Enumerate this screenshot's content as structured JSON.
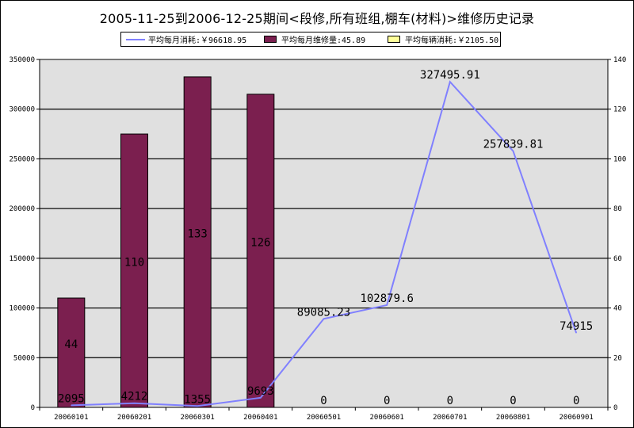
{
  "title": "2005-11-25到2006-12-25期间<段修,所有班组,棚车(材料)>维修历史记录",
  "legend": [
    {
      "label": "平均每月消耗:￥96618.95",
      "color": "#8080ff",
      "symbol": "line"
    },
    {
      "label": "平均每月维修量:45.89",
      "color": "#7b1f4f",
      "symbol": "box"
    },
    {
      "label": "平均每辆消耗:￥2105.50",
      "color": "#ffff99",
      "symbol": "box"
    }
  ],
  "chart_data": {
    "type": "bar",
    "categories": [
      "20060101",
      "20060201",
      "20060301",
      "20060401",
      "20060501",
      "20060601",
      "20060701",
      "20060801",
      "20060901"
    ],
    "series": [
      {
        "name": "平均每月消耗:￥96618.95",
        "type": "line",
        "axis": "left",
        "color": "#8080ff",
        "values": [
          2095,
          4212,
          1355,
          9693,
          89085.23,
          102879.6,
          327495.91,
          257839.81,
          74915
        ],
        "labels": [
          "2095",
          "4212",
          "1355",
          "9693",
          "89085.23",
          "102879.6",
          "327495.91",
          "257839.81",
          "74915"
        ]
      },
      {
        "name": "平均每月维修量:45.89",
        "type": "bar",
        "axis": "right",
        "color": "#7b1f4f",
        "values": [
          44,
          110,
          133,
          126,
          0,
          0,
          0,
          0,
          0
        ],
        "labels": [
          "44",
          "110",
          "133",
          "126",
          "0",
          "0",
          "0",
          "0",
          "0"
        ]
      }
    ],
    "y_left": {
      "min": 0,
      "max": 350000,
      "ticks": [
        0,
        50000,
        100000,
        150000,
        200000,
        250000,
        300000,
        350000
      ]
    },
    "y_right": {
      "min": 0,
      "max": 140,
      "ticks": [
        0,
        20,
        40,
        60,
        80,
        100,
        120,
        140
      ]
    },
    "grid": true,
    "legend_position": "top"
  },
  "colors": {
    "plot_bg": "#e0e0e0",
    "bar": "#7b1f4f",
    "line": "#8080ff",
    "grid": "#000000"
  }
}
